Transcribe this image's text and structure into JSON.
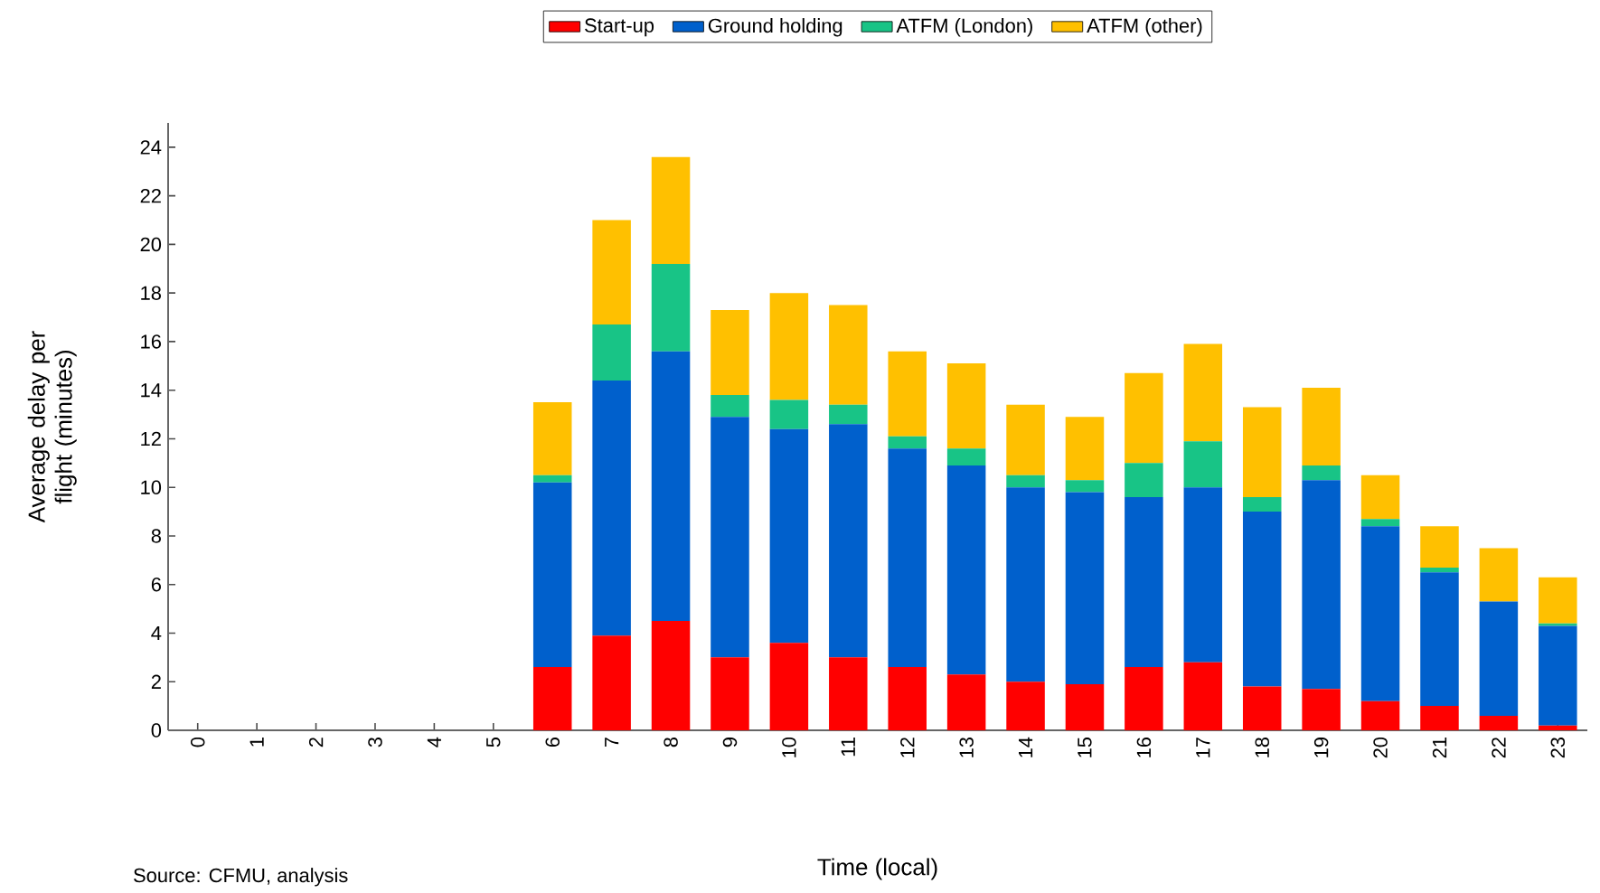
{
  "chart_data": {
    "type": "bar",
    "stacked": true,
    "xlabel": "Time (local)",
    "ylabel": "Average delay per flight (minutes)",
    "categories": [
      "0",
      "1",
      "2",
      "3",
      "4",
      "5",
      "6",
      "7",
      "8",
      "9",
      "10",
      "11",
      "12",
      "13",
      "14",
      "15",
      "16",
      "17",
      "18",
      "19",
      "20",
      "21",
      "22",
      "23"
    ],
    "series": [
      {
        "name": "Start-up",
        "color": "#ff0000",
        "values": [
          0,
          0,
          0,
          0,
          0,
          0,
          2.6,
          3.9,
          4.5,
          3.0,
          3.6,
          3.0,
          2.6,
          2.3,
          2.0,
          1.9,
          2.6,
          2.8,
          1.8,
          1.7,
          1.2,
          1.0,
          0.6,
          0.2
        ]
      },
      {
        "name": "Ground holding",
        "color": "#0060cc",
        "values": [
          0,
          0,
          0,
          0,
          0,
          0,
          7.6,
          10.5,
          11.1,
          9.9,
          8.8,
          9.6,
          9.0,
          8.6,
          8.0,
          7.9,
          7.0,
          7.2,
          7.2,
          8.6,
          7.2,
          5.5,
          4.7,
          4.1
        ]
      },
      {
        "name": "ATFM (London)",
        "color": "#18c486",
        "values": [
          0,
          0,
          0,
          0,
          0,
          0,
          0.3,
          2.3,
          3.6,
          0.9,
          1.2,
          0.8,
          0.5,
          0.7,
          0.5,
          0.5,
          1.4,
          1.9,
          0.6,
          0.6,
          0.3,
          0.2,
          0,
          0.1
        ]
      },
      {
        "name": "ATFM (other)",
        "color": "#ffc000",
        "values": [
          0,
          0,
          0,
          0,
          0,
          0,
          3.0,
          4.3,
          4.4,
          3.5,
          4.4,
          4.1,
          3.5,
          3.5,
          2.9,
          2.6,
          3.7,
          4.0,
          3.7,
          3.2,
          1.8,
          1.7,
          2.2,
          1.9
        ]
      }
    ],
    "ylim": [
      0,
      25
    ],
    "yticks": [
      0,
      2,
      4,
      6,
      8,
      10,
      12,
      14,
      16,
      18,
      20,
      22,
      24
    ],
    "grid": false,
    "legend": "top",
    "annotations": [
      "Source: CFMU, analysis"
    ]
  }
}
